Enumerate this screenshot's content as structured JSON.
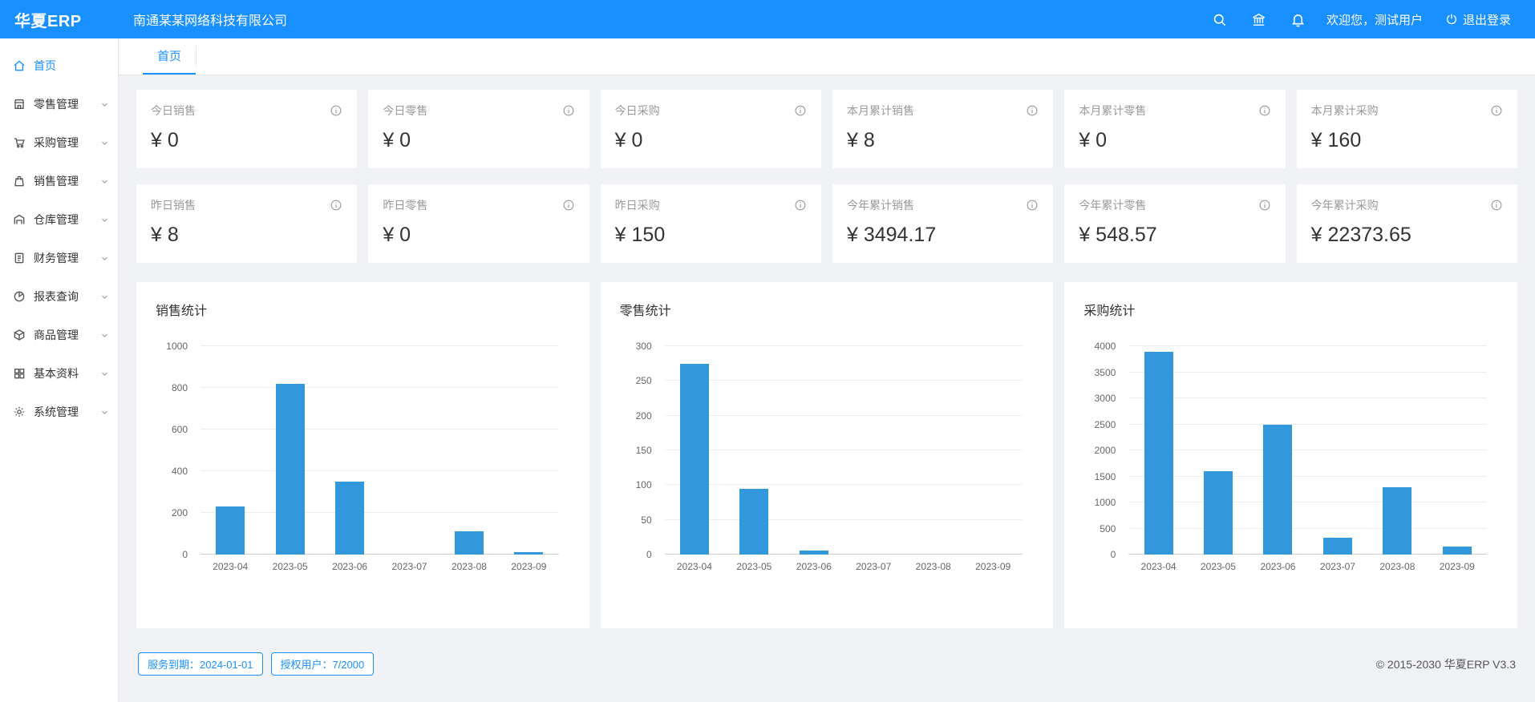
{
  "header": {
    "logo": "华夏ERP",
    "company": "南通某某网络科技有限公司",
    "welcome": "欢迎您，测试用户",
    "logout_label": "退出登录"
  },
  "sidebar": {
    "items": [
      {
        "id": "home",
        "label": "首页",
        "icon": "home",
        "active": true,
        "chevron": false
      },
      {
        "id": "retail",
        "label": "零售管理",
        "icon": "shop",
        "active": false,
        "chevron": true
      },
      {
        "id": "purchase",
        "label": "采购管理",
        "icon": "cart",
        "active": false,
        "chevron": true
      },
      {
        "id": "sales",
        "label": "销售管理",
        "icon": "sale",
        "active": false,
        "chevron": true
      },
      {
        "id": "warehouse",
        "label": "仓库管理",
        "icon": "warehouse",
        "active": false,
        "chevron": true
      },
      {
        "id": "finance",
        "label": "财务管理",
        "icon": "finance",
        "active": false,
        "chevron": true
      },
      {
        "id": "reports",
        "label": "报表查询",
        "icon": "report",
        "active": false,
        "chevron": true
      },
      {
        "id": "goods",
        "label": "商品管理",
        "icon": "goods",
        "active": false,
        "chevron": true
      },
      {
        "id": "basic",
        "label": "基本资料",
        "icon": "basic",
        "active": false,
        "chevron": true
      },
      {
        "id": "system",
        "label": "系统管理",
        "icon": "gear",
        "active": false,
        "chevron": true
      }
    ]
  },
  "tabs": [
    {
      "label": "首页",
      "active": true
    }
  ],
  "stats": [
    {
      "label": "今日销售",
      "value": "¥ 0"
    },
    {
      "label": "今日零售",
      "value": "¥ 0"
    },
    {
      "label": "今日采购",
      "value": "¥ 0"
    },
    {
      "label": "本月累计销售",
      "value": "¥ 8"
    },
    {
      "label": "本月累计零售",
      "value": "¥ 0"
    },
    {
      "label": "本月累计采购",
      "value": "¥ 160"
    },
    {
      "label": "昨日销售",
      "value": "¥ 8"
    },
    {
      "label": "昨日零售",
      "value": "¥ 0"
    },
    {
      "label": "昨日采购",
      "value": "¥ 150"
    },
    {
      "label": "今年累计销售",
      "value": "¥ 3494.17"
    },
    {
      "label": "今年累计零售",
      "value": "¥ 548.57"
    },
    {
      "label": "今年累计采购",
      "value": "¥ 22373.65"
    }
  ],
  "chart_data": [
    {
      "type": "bar",
      "title": "销售统计",
      "categories": [
        "2023-04",
        "2023-05",
        "2023-06",
        "2023-07",
        "2023-08",
        "2023-09"
      ],
      "values": [
        230,
        820,
        350,
        0,
        110,
        10
      ],
      "ylim": [
        0,
        1000
      ],
      "ytick_step": 200,
      "xlabel": "",
      "ylabel": "",
      "grid": true,
      "legend": "none"
    },
    {
      "type": "bar",
      "title": "零售统计",
      "categories": [
        "2023-04",
        "2023-05",
        "2023-06",
        "2023-07",
        "2023-08",
        "2023-09"
      ],
      "values": [
        275,
        95,
        6,
        0,
        0,
        0
      ],
      "ylim": [
        0,
        300
      ],
      "ytick_step": 50,
      "xlabel": "",
      "ylabel": "",
      "grid": true,
      "legend": "none"
    },
    {
      "type": "bar",
      "title": "采购统计",
      "categories": [
        "2023-04",
        "2023-05",
        "2023-06",
        "2023-07",
        "2023-08",
        "2023-09"
      ],
      "values": [
        3900,
        1600,
        2500,
        330,
        1300,
        150
      ],
      "ylim": [
        0,
        4000
      ],
      "ytick_step": 500,
      "xlabel": "",
      "ylabel": "",
      "grid": true,
      "legend": "none"
    }
  ],
  "footer": {
    "badges": [
      "服务到期：2024-01-01",
      "授权用户：7/2000"
    ],
    "copyright": "© 2015-2030 华夏ERP V3.3"
  },
  "colors": {
    "accent": "#1890ff",
    "bar": "#3398db",
    "content_bg": "#f0f2f5"
  }
}
